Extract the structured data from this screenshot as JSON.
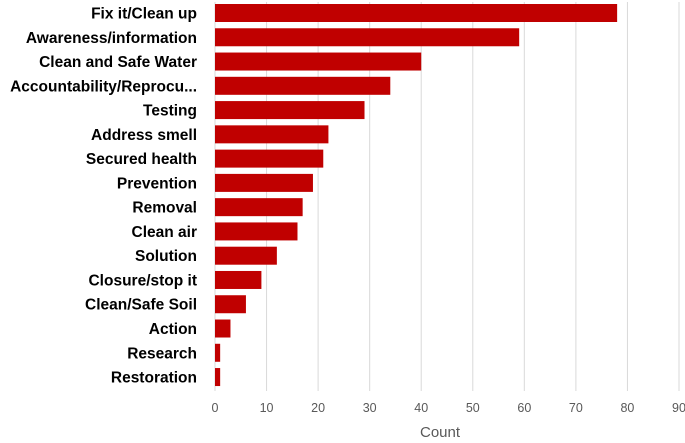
{
  "chart_data": {
    "type": "bar",
    "orientation": "horizontal",
    "categories": [
      "Fix it/Clean up",
      "Awareness/information",
      "Clean and Safe Water",
      "Accountability/Reprocu...",
      "Testing",
      "Address smell",
      "Secured health",
      "Prevention",
      "Removal",
      "Clean air",
      "Solution",
      "Closure/stop it",
      "Clean/Safe Soil",
      "Action",
      "Research",
      "Restoration"
    ],
    "values": [
      78,
      59,
      40,
      34,
      29,
      22,
      21,
      19,
      17,
      16,
      12,
      9,
      6,
      3,
      1,
      1
    ],
    "xlabel": "Count",
    "ylabel": "",
    "xlim": [
      0,
      90
    ],
    "xticks": [
      "0",
      "10",
      "20",
      "30",
      "40",
      "50",
      "60",
      "70",
      "80",
      "90"
    ],
    "grid": "vertical",
    "bar_color": "#C00000",
    "grid_color": "#D9D9D9"
  }
}
